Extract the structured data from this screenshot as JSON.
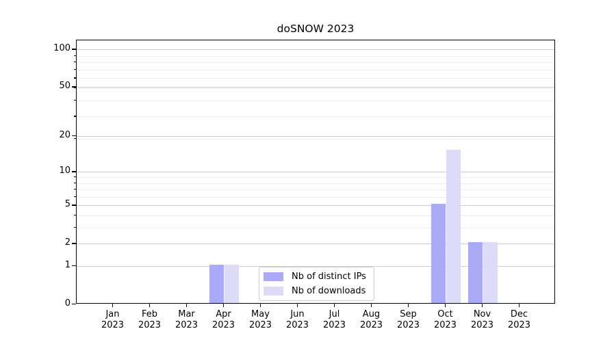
{
  "chart_data": {
    "type": "bar",
    "title": "doSNOW 2023",
    "year": "2023",
    "categories": [
      "Jan",
      "Feb",
      "Mar",
      "Apr",
      "May",
      "Jun",
      "Jul",
      "Aug",
      "Sep",
      "Oct",
      "Nov",
      "Dec"
    ],
    "series": [
      {
        "name": "Nb of distinct IPs",
        "color": "#aaaaf6",
        "values": [
          0,
          0,
          0,
          1,
          0,
          0,
          0,
          0,
          0,
          5,
          2,
          0
        ]
      },
      {
        "name": "Nb of downloads",
        "color": "#dcdcf8",
        "values": [
          0,
          0,
          0,
          1,
          0,
          0,
          0,
          0,
          0,
          15,
          2,
          0
        ]
      }
    ],
    "yscale": "log1p",
    "ylim": [
      0,
      118
    ],
    "yticks": [
      0,
      1,
      2,
      5,
      10,
      20,
      50,
      100
    ],
    "minor_yticks": [
      3,
      4,
      6,
      7,
      8,
      9,
      19,
      29,
      39,
      49,
      59,
      69,
      79,
      89
    ],
    "xlabel": "",
    "ylabel": "",
    "grid": "horizontal",
    "legend_position": "lower-center",
    "colors": {
      "background": "#ffffff",
      "axis": "#000000",
      "text": "#000000",
      "grid_major": "#cbcbcb",
      "grid_minor": "#ececec",
      "legend_border": "#cccccc"
    }
  }
}
